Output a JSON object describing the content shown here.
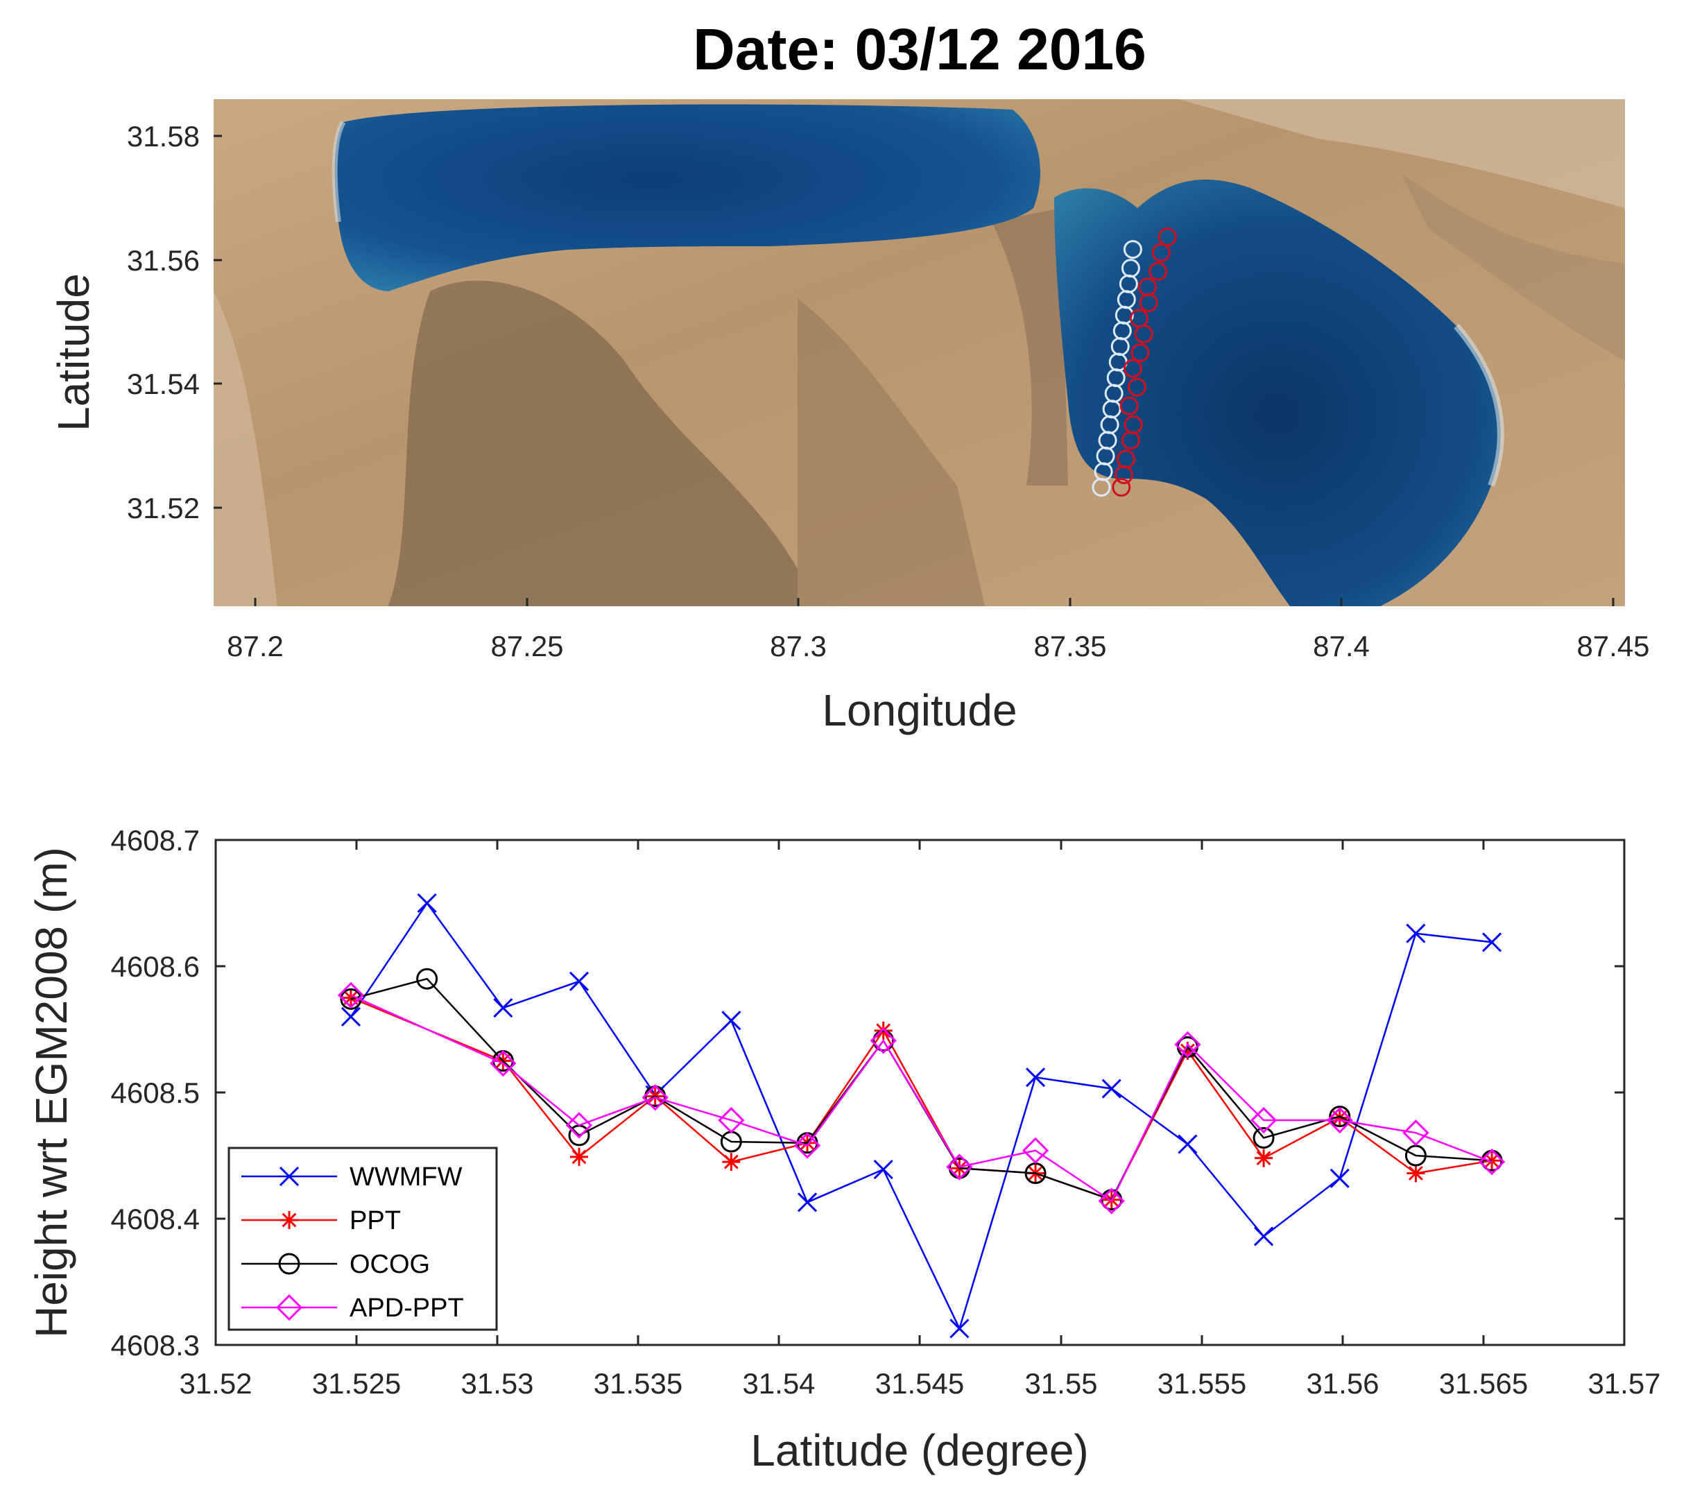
{
  "chart_data": [
    {
      "type": "scatter",
      "title": "Date: 03/12 2016",
      "xlabel": "Longitude",
      "ylabel": "Latitude",
      "xlim": [
        87.193,
        87.462
      ],
      "ylim": [
        31.5055,
        31.5865
      ],
      "xticks": [
        "87.2",
        "87.25",
        "87.3",
        "87.35",
        "87.4",
        "87.45"
      ],
      "yticks": [
        "31.52",
        "31.54",
        "31.56",
        "31.58"
      ],
      "background": "satellite image of two lakes",
      "series": [
        {
          "color": "#dde8f8",
          "marker": "circle",
          "x": [
            87.3622,
            87.3626,
            87.363,
            87.3634,
            87.3638,
            87.3642,
            87.3646,
            87.365,
            87.3654,
            87.3658,
            87.3662,
            87.3666,
            87.367,
            87.3674,
            87.3678,
            87.3682
          ],
          "y": [
            31.5245,
            31.527,
            31.5295,
            31.532,
            31.5345,
            31.537,
            31.5395,
            31.542,
            31.5445,
            31.547,
            31.5495,
            31.552,
            31.5545,
            31.557,
            31.5595,
            31.5625
          ]
        },
        {
          "color": "#d01020",
          "marker": "circle",
          "x": [
            87.366,
            87.3665,
            87.3669,
            87.3678,
            87.3683,
            87.3675,
            87.369,
            87.3682,
            87.3696,
            87.3703,
            87.3694,
            87.3712,
            87.371,
            87.373,
            87.3736,
            87.3748
          ],
          "y": [
            31.5245,
            31.5265,
            31.529,
            31.532,
            31.5345,
            31.5375,
            31.5405,
            31.5435,
            31.546,
            31.549,
            31.5515,
            31.554,
            31.5565,
            31.559,
            31.562,
            31.5645
          ]
        }
      ]
    },
    {
      "type": "line",
      "title": "",
      "xlabel": "Latitude (degree)",
      "ylabel": "Height wrt EGM2008 (m)",
      "xlim": [
        31.52,
        31.57
      ],
      "ylim": [
        4608.3,
        4608.7
      ],
      "xticks": [
        "31.52",
        "31.525",
        "31.53",
        "31.535",
        "31.54",
        "31.545",
        "31.55",
        "31.555",
        "31.56",
        "31.565",
        "31.57"
      ],
      "yticks": [
        "4608.3",
        "4608.4",
        "4608.5",
        "4608.6",
        "4608.7"
      ],
      "legend_position": "bottom-left",
      "series": [
        {
          "name": "WWMFW",
          "color": "#0000ff",
          "marker": "x",
          "x": [
            31.5248,
            31.5275,
            31.5302,
            31.5329,
            31.5356,
            31.5383,
            31.541,
            31.5437,
            31.5464,
            31.5491,
            31.5518,
            31.5545,
            31.5572,
            31.5599,
            31.5626,
            31.5653
          ],
          "y": [
            4608.56,
            4608.65,
            4608.567,
            4608.588,
            4608.498,
            4608.557,
            4608.413,
            4608.439,
            4608.313,
            4608.512,
            4608.503,
            4608.459,
            4608.386,
            4608.432,
            4608.626,
            4608.619
          ]
        },
        {
          "name": "PPT",
          "color": "#ff0000",
          "marker": "asterisk",
          "x": [
            31.5248,
            31.5302,
            31.5329,
            31.5356,
            31.5383,
            31.541,
            31.5437,
            31.5464,
            31.5491,
            31.5518,
            31.5545,
            31.5572,
            31.5599,
            31.5626,
            31.5653
          ],
          "y": [
            4608.575,
            4608.525,
            4608.449,
            4608.497,
            4608.445,
            4608.46,
            4608.549,
            4608.44,
            4608.436,
            4608.415,
            4608.533,
            4608.448,
            4608.48,
            4608.436,
            4608.446
          ]
        },
        {
          "name": "OCOG",
          "color": "#000000",
          "marker": "circle",
          "x": [
            31.5248,
            31.5275,
            31.5302,
            31.5329,
            31.5356,
            31.5383,
            31.541,
            31.5437,
            31.5464,
            31.5491,
            31.5518,
            31.5545,
            31.5572,
            31.5599,
            31.5626,
            31.5653
          ],
          "y": [
            4608.574,
            4608.59,
            4608.525,
            4608.466,
            4608.497,
            4608.461,
            4608.46,
            4608.541,
            4608.44,
            4608.436,
            4608.415,
            4608.536,
            4608.464,
            4608.481,
            4608.45,
            4608.446
          ]
        },
        {
          "name": "APD-PPT",
          "color": "#ff00ff",
          "marker": "diamond",
          "x": [
            31.5248,
            31.5302,
            31.5329,
            31.5356,
            31.5383,
            31.541,
            31.5437,
            31.5464,
            31.5491,
            31.5518,
            31.5545,
            31.5572,
            31.5599,
            31.5626,
            31.5653
          ],
          "y": [
            4608.577,
            4608.523,
            4608.474,
            4608.496,
            4608.478,
            4608.458,
            4608.541,
            4608.441,
            4608.454,
            4608.414,
            4608.538,
            4608.478,
            4608.478,
            4608.468,
            4608.445
          ]
        }
      ]
    }
  ]
}
